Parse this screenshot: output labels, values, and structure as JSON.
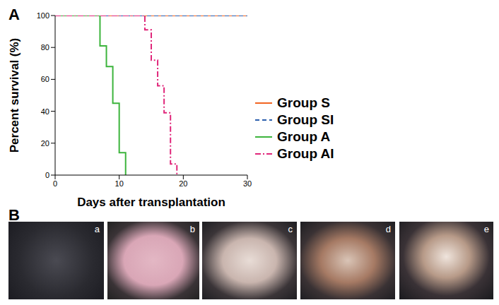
{
  "panel_labels": [
    "A",
    "B"
  ],
  "chart_data": {
    "type": "line",
    "x_label": "Days after transplantation",
    "y_label": "Percent survival (%)",
    "xlim": [
      0,
      30
    ],
    "xticks": [
      0,
      10,
      20,
      30
    ],
    "ylim": [
      0,
      100
    ],
    "yticks": [
      0,
      20,
      40,
      60,
      80,
      100
    ],
    "grid": false,
    "legend": "right",
    "series": [
      {
        "name": "Group S",
        "color": "#f26522",
        "line_style": "solid",
        "x": [
          0,
          30
        ],
        "values": [
          100,
          100
        ]
      },
      {
        "name": "Group SI",
        "color": "#2b5fad",
        "line_style": "dashed",
        "x": [
          0,
          30
        ],
        "values": [
          100,
          100
        ]
      },
      {
        "name": "Group A",
        "color": "#3cb43c",
        "line_style": "solid",
        "x": [
          0,
          7,
          8,
          9,
          10,
          11
        ],
        "values": [
          100,
          81,
          68,
          45,
          14,
          0
        ]
      },
      {
        "name": "Group AI",
        "color": "#e0267a",
        "line_style": "dashdot",
        "x": [
          0,
          14,
          15,
          16,
          17,
          18,
          19
        ],
        "values": [
          100,
          91,
          72,
          56,
          39,
          7,
          0
        ]
      }
    ]
  },
  "photo_labels": [
    "a",
    "b",
    "c",
    "d",
    "e"
  ]
}
